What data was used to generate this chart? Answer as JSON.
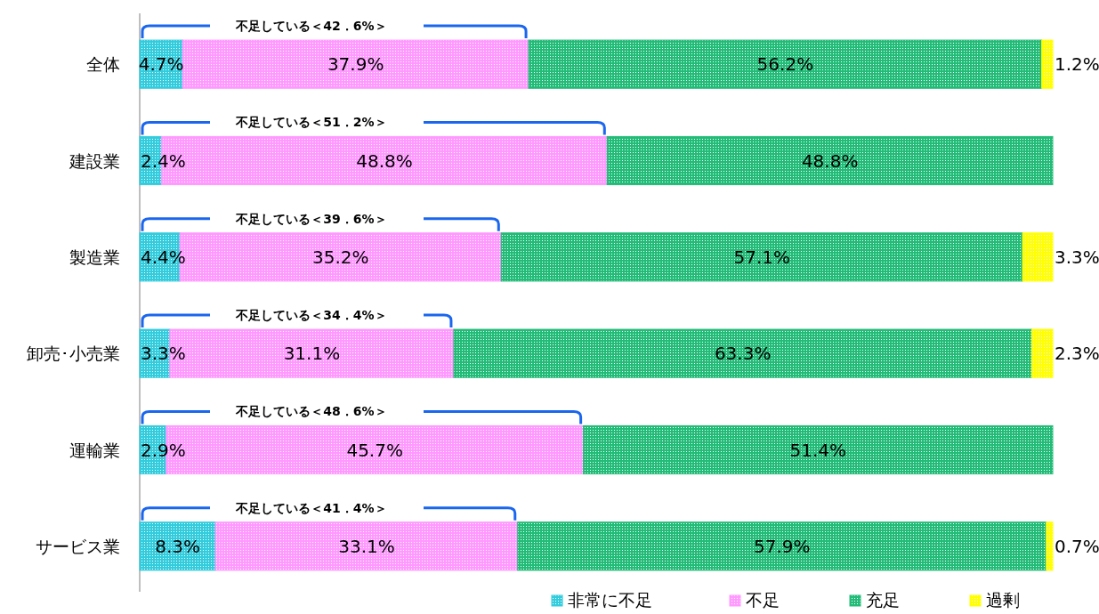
{
  "chart_data": {
    "type": "bar",
    "orientation": "horizontal",
    "stacked": true,
    "legend": "bottom",
    "grid": false,
    "categories": [
      "全体",
      "建設業",
      "製造業",
      "卸売･小売業",
      "運輸業",
      "サービス業"
    ],
    "series": [
      {
        "name": "非常に不足",
        "color": "#33ccdd",
        "values": [
          4.7,
          2.4,
          4.4,
          3.3,
          2.9,
          8.3
        ],
        "value_labels": [
          "4.7%",
          "2.4%",
          "4.4%",
          "3.3%",
          "2.9%",
          "8.3%"
        ]
      },
      {
        "name": "不足",
        "color": "#ff99ff",
        "values": [
          37.9,
          48.8,
          35.2,
          31.1,
          45.7,
          33.1
        ],
        "value_labels": [
          "37.9%",
          "48.8%",
          "35.2%",
          "31.1%",
          "45.7%",
          "33.1%"
        ]
      },
      {
        "name": "充足",
        "color": "#22bb77",
        "values": [
          56.2,
          48.8,
          57.1,
          63.3,
          51.4,
          57.9
        ],
        "value_labels": [
          "56.2%",
          "48.8%",
          "57.1%",
          "63.3%",
          "51.4%",
          "57.9%"
        ]
      },
      {
        "name": "過剰",
        "color": "#ffff00",
        "values": [
          1.2,
          null,
          3.3,
          2.3,
          null,
          0.7
        ],
        "value_labels": [
          "1.2%",
          null,
          "3.3%",
          "2.3%",
          null,
          "0.7%"
        ]
      }
    ],
    "annotations": [
      "不足している＜42．6%＞",
      "不足している＜51．2%＞",
      "不足している＜39．6%＞",
      "不足している＜34．4%＞",
      "不足している＜48．6%＞",
      "不足している＜41．4%＞"
    ]
  }
}
